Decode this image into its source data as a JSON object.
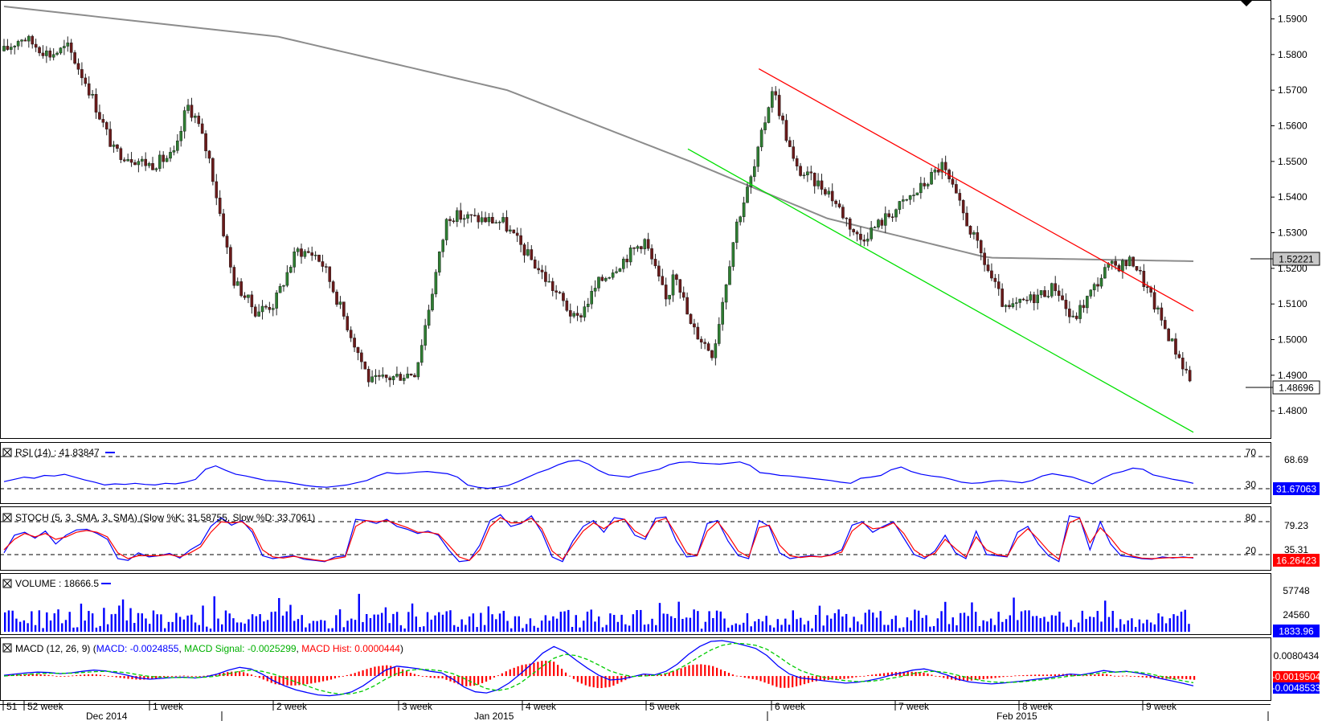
{
  "colors": {
    "bull": "#2e7d32",
    "bear": "#6a1a1a",
    "sma": "#8c8c8c",
    "upper_trend": "#ff0000",
    "lower_trend": "#00e000",
    "rsi": "#0000ff",
    "stoch_k": "#0000ff",
    "stoch_d": "#ff0000",
    "volume": "#0000ff",
    "macd": "#0000ff",
    "signal": "#00cc00",
    "hist": "#ff0000",
    "grid": "#000000"
  },
  "chart_data": [
    {
      "type": "candlestick",
      "panel": "price",
      "ylim": [
        1.4735,
        1.5935
      ],
      "yticks": [
        "1.5900",
        "1.5800",
        "1.5700",
        "1.5600",
        "1.5500",
        "1.5400",
        "1.5300",
        "1.5200",
        "1.5100",
        "1.5000",
        "1.4900",
        "1.4800"
      ],
      "price_labels": {
        "sma": "1.52221",
        "last": "1.48696"
      },
      "sma_level": 1.52221,
      "last_price": 1.48696,
      "candle_count": 336,
      "anchors": [
        [
          0,
          1.581
        ],
        [
          8,
          1.585
        ],
        [
          20,
          1.58
        ],
        [
          28,
          1.582
        ],
        [
          36,
          1.572
        ],
        [
          48,
          1.553
        ],
        [
          64,
          1.549
        ],
        [
          75,
          1.552
        ],
        [
          80,
          1.566
        ],
        [
          84,
          1.562
        ],
        [
          90,
          1.55
        ],
        [
          100,
          1.517
        ],
        [
          110,
          1.508
        ],
        [
          118,
          1.51
        ],
        [
          128,
          1.525
        ],
        [
          136,
          1.524
        ],
        [
          140,
          1.5205
        ],
        [
          160,
          1.488
        ],
        [
          180,
          1.491
        ],
        [
          194,
          1.535
        ],
        [
          218,
          1.533
        ],
        [
          244,
          1.511
        ],
        [
          250,
          1.505
        ],
        [
          260,
          1.516
        ],
        [
          280,
          1.528
        ],
        [
          290,
          1.51
        ],
        [
          293,
          1.521
        ],
        [
          300,
          1.504
        ],
        [
          310,
          1.496
        ],
        [
          320,
          1.532
        ],
        [
          328,
          1.548
        ],
        [
          336,
          1.571
        ],
        [
          346,
          1.548
        ],
        [
          360,
          1.542
        ],
        [
          374,
          1.528
        ],
        [
          400,
          1.542
        ],
        [
          410,
          1.549
        ],
        [
          438,
          1.508
        ],
        [
          460,
          1.515
        ],
        [
          467,
          1.505
        ],
        [
          482,
          1.52
        ],
        [
          494,
          1.522
        ],
        [
          510,
          1.5
        ],
        [
          520,
          1.487
        ]
      ],
      "sma_points": [
        [
          0,
          1.5935
        ],
        [
          120,
          1.585
        ],
        [
          220,
          1.57
        ],
        [
          300,
          1.55
        ],
        [
          360,
          1.534
        ],
        [
          430,
          1.523
        ],
        [
          520,
          1.522
        ]
      ],
      "trendlines": [
        {
          "name": "upper",
          "from": [
            330,
            1.576
          ],
          "to": [
            520,
            1.508
          ]
        },
        {
          "name": "lower",
          "from": [
            299,
            1.5535
          ],
          "to": [
            520,
            1.474
          ]
        }
      ]
    },
    {
      "type": "line",
      "panel": "rsi",
      "label": "RSI (14) : 41.83847",
      "ylim": [
        0,
        100
      ],
      "levels": [
        70,
        30
      ],
      "level_labels": {
        "upper": "70",
        "lower": "30"
      },
      "right_labels": {
        "current": "31.67063",
        "scale": "68.69"
      },
      "series": [
        {
          "values": [
            34,
            38,
            42,
            40,
            45,
            44,
            47,
            42,
            37,
            33,
            28,
            30,
            29,
            31,
            29,
            28,
            31,
            30,
            33,
            38,
            56,
            62,
            54,
            47,
            44,
            40,
            36,
            35,
            33,
            30,
            27,
            25,
            24,
            26,
            28,
            32,
            36,
            44,
            50,
            48,
            49,
            51,
            52,
            50,
            48,
            42,
            28,
            24,
            22,
            24,
            27,
            34,
            42,
            50,
            56,
            64,
            70,
            72,
            65,
            54,
            46,
            44,
            42,
            48,
            52,
            56,
            64,
            68,
            69,
            67,
            66,
            65,
            67,
            69,
            63,
            50,
            48,
            45,
            44,
            42,
            40,
            38,
            36,
            33,
            31,
            40,
            42,
            45,
            55,
            60,
            52,
            47,
            44,
            42,
            38,
            33,
            31,
            32,
            35,
            36,
            34,
            32,
            36,
            44,
            48,
            45,
            42,
            36,
            30,
            40,
            48,
            52,
            58,
            56,
            46,
            42,
            38,
            35,
            31
          ]
        }
      ]
    },
    {
      "type": "line",
      "panel": "stoch",
      "label": "STOCH (5, 3, SMA, 3, SMA) (Slow %K: 31.58755, Slow %D: 33.7061)",
      "ylim": [
        0,
        100
      ],
      "levels": [
        80,
        20
      ],
      "level_labels": {
        "upper": "80",
        "lower": "20"
      },
      "right_labels": {
        "current": "16.26423",
        "scale_top": "79.23",
        "scale_mid": "35.31"
      },
      "series": [
        {
          "name": "Slow %K",
          "values": [
            25,
            55,
            60,
            50,
            62,
            40,
            55,
            64,
            65,
            58,
            48,
            15,
            12,
            25,
            18,
            20,
            24,
            16,
            30,
            40,
            70,
            85,
            72,
            80,
            60,
            20,
            15,
            18,
            20,
            14,
            12,
            10,
            18,
            20,
            82,
            80,
            75,
            82,
            70,
            65,
            58,
            62,
            55,
            30,
            10,
            12,
            38,
            80,
            90,
            70,
            75,
            88,
            60,
            18,
            10,
            45,
            70,
            80,
            60,
            85,
            82,
            55,
            48,
            84,
            86,
            45,
            18,
            20,
            75,
            80,
            45,
            20,
            15,
            80,
            70,
            25,
            15,
            18,
            20,
            18,
            22,
            30,
            72,
            78,
            60,
            70,
            78,
            50,
            22,
            15,
            28,
            55,
            25,
            15,
            62,
            22,
            20,
            18,
            60,
            70,
            40,
            20,
            10,
            88,
            85,
            30,
            78,
            40,
            20,
            18,
            15,
            14,
            18,
            16,
            18,
            16
          ]
        },
        {
          "name": "Slow %D",
          "values": [
            30,
            48,
            58,
            52,
            58,
            48,
            52,
            60,
            63,
            60,
            52,
            25,
            15,
            20,
            20,
            20,
            22,
            18,
            25,
            35,
            60,
            78,
            76,
            78,
            65,
            30,
            18,
            16,
            19,
            16,
            13,
            11,
            15,
            18,
            70,
            80,
            78,
            80,
            74,
            68,
            60,
            60,
            57,
            38,
            18,
            12,
            30,
            70,
            85,
            76,
            76,
            84,
            66,
            28,
            14,
            38,
            62,
            76,
            66,
            78,
            82,
            62,
            52,
            78,
            84,
            56,
            25,
            20,
            62,
            78,
            55,
            28,
            18,
            68,
            72,
            38,
            20,
            17,
            19,
            18,
            21,
            26,
            62,
            76,
            66,
            68,
            76,
            58,
            30,
            18,
            24,
            48,
            32,
            18,
            52,
            30,
            22,
            19,
            50,
            66,
            48,
            28,
            14,
            76,
            84,
            42,
            68,
            50,
            28,
            20,
            16,
            15,
            16,
            17,
            17,
            17
          ]
        }
      ]
    },
    {
      "type": "bar",
      "panel": "volume",
      "label": "VOLUME : 18666.5",
      "ylim": [
        0,
        75000
      ],
      "right_labels": {
        "top": "57748",
        "mid": "24560",
        "current": "1833.96"
      }
    },
    {
      "type": "line",
      "panel": "macd",
      "label_prefix": "MACD (12, 26, 9)",
      "label_macd": "MACD: -0.0024855",
      "label_signal": "MACD Signal: -0.0025299",
      "label_hist": "MACD Hist: 0.0000444",
      "right_labels": {
        "top": "0.0080434",
        "hist": "-0.0019504",
        "macd": "-0.0048533"
      },
      "ylim": [
        -0.0055,
        0.0092
      ],
      "series": [
        {
          "name": "MACD",
          "values": [
            0.0002,
            0.0005,
            0.0008,
            0.001,
            0.0009,
            0.0006,
            0.0008,
            0.0012,
            0.0015,
            0.0013,
            0.0008,
            0.0002,
            -0.0005,
            -0.0008,
            -0.0006,
            -0.0004,
            -0.0003,
            -0.0005,
            -0.0002,
            0.0005,
            0.0015,
            0.0022,
            0.0018,
            0.0005,
            -0.0012,
            -0.0025,
            -0.0035,
            -0.0042,
            -0.0048,
            -0.005,
            -0.0047,
            -0.004,
            -0.0025,
            -0.0005,
            0.0015,
            0.0025,
            0.0022,
            0.0018,
            0.0012,
            0.0008,
            -0.0008,
            -0.0028,
            -0.004,
            -0.0043,
            -0.0035,
            -0.0018,
            0.0005,
            0.003,
            0.0058,
            0.0075,
            0.0062,
            0.004,
            0.002,
            0.0002,
            -0.001,
            -0.0008,
            -0.0002,
            0.0005,
            0.0003,
            0.0012,
            0.003,
            0.0055,
            0.0075,
            0.0088,
            0.009,
            0.0085,
            0.0078,
            0.007,
            0.0052,
            0.0025,
            0.0005,
            -0.0005,
            -0.0008,
            -0.0012,
            -0.0015,
            -0.0018,
            -0.0016,
            -0.0012,
            -0.0006,
            0.0002,
            0.0008,
            0.0015,
            0.0018,
            0.0012,
            0.0003,
            -0.0008,
            -0.0015,
            -0.0018,
            -0.002,
            -0.0018,
            -0.0015,
            -0.0012,
            -0.0008,
            -0.0005,
            0.0,
            0.0005,
            0.0003,
            0.0008,
            0.0014,
            0.001,
            0.0012,
            0.0008,
            0.0002,
            -0.0006,
            -0.0012,
            -0.0018,
            -0.0025
          ]
        },
        {
          "name": "MACD Signal",
          "values": [
            0.0,
            0.0002,
            0.0004,
            0.0006,
            0.0007,
            0.0007,
            0.0007,
            0.0009,
            0.0011,
            0.0012,
            0.0011,
            0.0008,
            0.0003,
            -0.0001,
            -0.0003,
            -0.0004,
            -0.0004,
            -0.0004,
            -0.0003,
            0.0,
            0.0006,
            0.0012,
            0.0015,
            0.0012,
            0.0005,
            -0.0005,
            -0.0015,
            -0.0025,
            -0.0035,
            -0.0042,
            -0.0046,
            -0.0045,
            -0.0038,
            -0.0025,
            -0.0008,
            0.0006,
            0.0014,
            0.0017,
            0.0016,
            0.0013,
            0.0006,
            -0.0006,
            -0.002,
            -0.0032,
            -0.0037,
            -0.0032,
            -0.0018,
            0.0003,
            0.0025,
            0.0045,
            0.0055,
            0.0052,
            0.0042,
            0.0028,
            0.0013,
            0.0004,
            -0.0001,
            0.0,
            0.0002,
            0.0006,
            0.0016,
            0.0032,
            0.005,
            0.0066,
            0.0078,
            0.0083,
            0.0082,
            0.0078,
            0.0068,
            0.005,
            0.003,
            0.0014,
            0.0004,
            -0.0003,
            -0.0008,
            -0.0012,
            -0.0014,
            -0.0014,
            -0.0011,
            -0.0006,
            -0.0001,
            0.0006,
            0.0011,
            0.0012,
            0.0009,
            0.0002,
            -0.0005,
            -0.0011,
            -0.0015,
            -0.0016,
            -0.0016,
            -0.0014,
            -0.0011,
            -0.0008,
            -0.0004,
            0.0,
            0.0002,
            0.0005,
            0.0009,
            0.001,
            0.0011,
            0.001,
            0.0006,
            0.0,
            -0.0006,
            -0.0012,
            -0.0017
          ]
        }
      ]
    }
  ],
  "x_axis": {
    "week_labels": [
      "51",
      "52 week",
      "1 week",
      "2 week",
      "3 week",
      "4 week",
      "5 week",
      "6 week",
      "7 week",
      "8 week",
      "9 week"
    ],
    "month_labels": [
      "Dec 2014",
      "Jan 2015",
      "Feb 2015"
    ]
  }
}
